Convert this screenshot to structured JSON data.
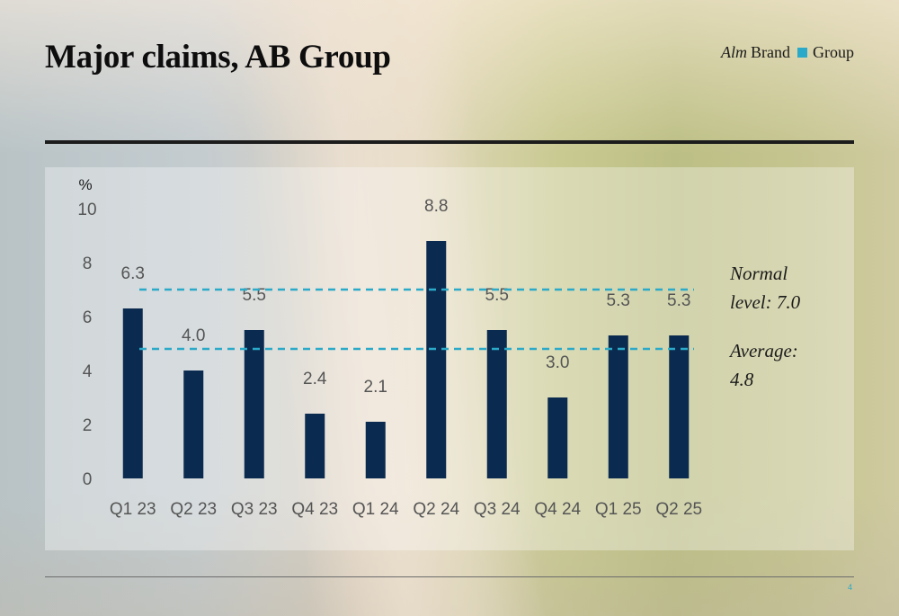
{
  "header": {
    "title": "Major claims, AB Group",
    "logo": {
      "alm": "Alm",
      "brand": "Brand",
      "group": "Group",
      "square_color": "#2aa9c8"
    }
  },
  "footer": {
    "page_number": "4"
  },
  "chart_data": {
    "type": "bar",
    "title": "Major claims, AB Group",
    "ylabel": "%",
    "xlabel": "",
    "ylim": [
      0,
      10
    ],
    "yticks": [
      0,
      2,
      4,
      6,
      8,
      10
    ],
    "grid": false,
    "categories": [
      "Q1 23",
      "Q2 23",
      "Q3 23",
      "Q4 23",
      "Q1 24",
      "Q2 24",
      "Q3 24",
      "Q4 24",
      "Q1 25",
      "Q2 25"
    ],
    "values": [
      6.3,
      4.0,
      5.5,
      2.4,
      2.1,
      8.8,
      5.5,
      3.0,
      5.3,
      5.3
    ],
    "data_labels": [
      "6.3",
      "4.0",
      "5.5",
      "2.4",
      "2.1",
      "8.8",
      "5.5",
      "3.0",
      "5.3",
      "5.3"
    ],
    "bar_color": "#0b2a4f",
    "reference_lines": [
      {
        "label_line1": "Normal",
        "label_line2": "level: 7.0",
        "value": 7.0,
        "color": "#2aa9c8",
        "style": "dashed"
      },
      {
        "label_line1": "Average:",
        "label_line2": "4.8",
        "value": 4.8,
        "color": "#2aa9c8",
        "style": "dashed"
      }
    ]
  }
}
